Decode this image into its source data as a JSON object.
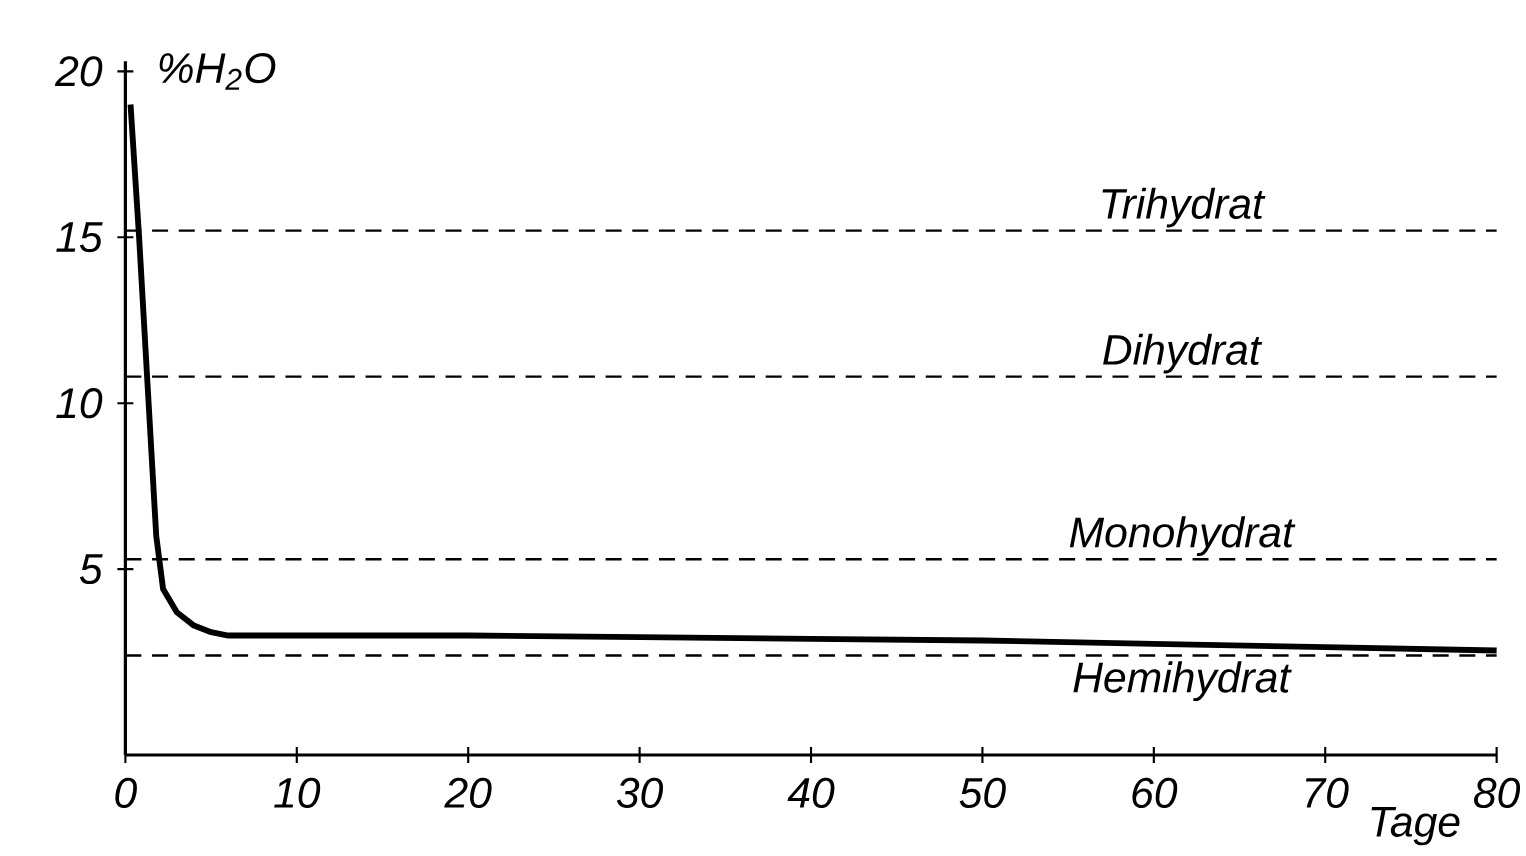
{
  "chart_data": {
    "type": "line",
    "xlabel": "Tage",
    "ylabel": "%H$_{2}$O",
    "x": [
      0.3,
      0.8,
      1.3,
      1.8,
      2.2,
      3,
      4,
      5,
      6,
      10,
      20,
      30,
      40,
      50,
      60,
      70,
      80
    ],
    "series": [
      {
        "color": "#000000",
        "values": [
          19,
          15,
          10.5,
          6,
          4.4,
          3.7,
          3.3,
          3.1,
          3.0,
          3.0,
          3.0,
          2.95,
          2.9,
          2.85,
          2.75,
          2.65,
          2.55
        ]
      }
    ],
    "xlim": [
      0,
      80
    ],
    "ylim": [
      -0.6,
      20.3
    ],
    "xticks": [
      0,
      10,
      20,
      30,
      40,
      50,
      60,
      70,
      80
    ],
    "yticks": [
      5,
      10,
      15,
      20
    ],
    "ref_lines": [
      {
        "axis": "y",
        "value": 15.2,
        "label": "Trihydrat",
        "line_style": "dashed",
        "color": "#000000"
      },
      {
        "axis": "y",
        "value": 10.8,
        "label": "Dihydrat",
        "line_style": "dashed",
        "color": "#000000"
      },
      {
        "axis": "y",
        "value": 5.3,
        "label": "Monohydrat",
        "line_style": "dashed",
        "color": "#000000"
      },
      {
        "axis": "y",
        "value": 2.4,
        "label": "Hemihydrat",
        "line_style": "dashed",
        "color": "#000000"
      }
    ],
    "grid": false,
    "marker": "none",
    "line_style": "solid"
  }
}
